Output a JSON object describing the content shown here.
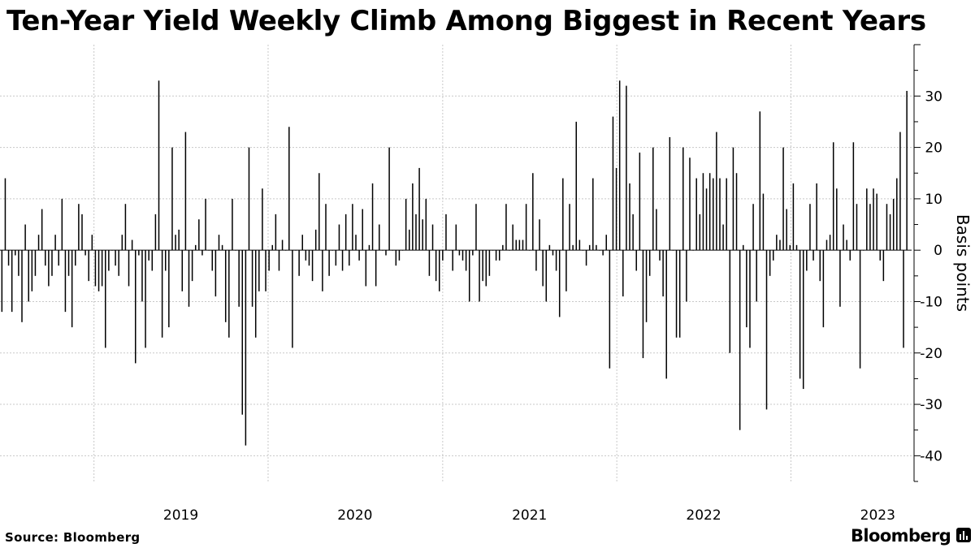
{
  "title": "Ten-Year Yield Weekly Climb Among Biggest in Recent Years",
  "source": "Source: Bloomberg",
  "brand": "Bloomberg",
  "colors": {
    "bar": "#000000",
    "grid": "#c8c8c8",
    "zero_line": "#000000",
    "background": "#ffffff"
  },
  "icons": {
    "brand": "bar-chart-icon"
  },
  "chart_data": {
    "type": "bar",
    "ylabel": "Basis points",
    "ylim": [
      -45,
      40
    ],
    "yticks": [
      30,
      20,
      10,
      0,
      -10,
      -20,
      -30,
      -40
    ],
    "ytick_labels": [
      "30",
      "20",
      "10",
      "0",
      "-10",
      "-20",
      "-30",
      "-40"
    ],
    "x_start": "2018-06-22",
    "x_range": [
      "2018-06-18",
      "2023-09-11"
    ],
    "x_unit": "week",
    "year_labels": [
      "2019",
      "2020",
      "2021",
      "2022",
      "2023"
    ],
    "year_label_dates": [
      "2019-07-02",
      "2020-07-01",
      "2021-07-02",
      "2022-07-02",
      "2023-07-02"
    ],
    "year_dividers": [
      "2019-01-01",
      "2020-01-01",
      "2021-01-01",
      "2022-01-01",
      "2023-01-01"
    ],
    "grid": true,
    "values": [
      -12,
      14,
      -3,
      -12,
      -1,
      -5,
      -14,
      5,
      -10,
      -8,
      -5,
      3,
      8,
      -3,
      -7,
      -5,
      3,
      -3,
      10,
      -12,
      -5,
      -15,
      -3,
      9,
      7,
      -1,
      -6,
      3,
      -7,
      -8,
      -7,
      -19,
      -4,
      0,
      -3,
      -5,
      3,
      9,
      -7,
      2,
      -22,
      -1,
      -10,
      -19,
      -2,
      -4,
      7,
      33,
      -17,
      -4,
      -15,
      20,
      3,
      4,
      -8,
      23,
      -11,
      -6,
      1,
      6,
      -1,
      10,
      0,
      -4,
      -9,
      3,
      1,
      -14,
      -17,
      10,
      0,
      -11,
      -32,
      -38,
      20,
      -11,
      -17,
      -8,
      12,
      -8,
      -4,
      1,
      7,
      -4,
      2,
      0,
      24,
      -19,
      0,
      -5,
      3,
      -2,
      -3,
      -6,
      4,
      15,
      -8,
      9,
      -5,
      0,
      -3,
      5,
      -4,
      7,
      -3,
      9,
      3,
      -2,
      8,
      -7,
      1,
      13,
      -7,
      5,
      0,
      -1,
      20,
      0,
      -3,
      -2,
      0,
      10,
      4,
      13,
      7,
      16,
      6,
      10,
      -5,
      5,
      -6,
      -8,
      -2,
      7,
      0,
      -4,
      5,
      -1,
      -2,
      -4,
      -10,
      -1,
      9,
      -10,
      -6,
      -7,
      -5,
      0,
      -2,
      -2,
      1,
      9,
      0,
      5,
      2,
      2,
      2,
      9,
      0,
      15,
      -4,
      6,
      -7,
      -10,
      1,
      -1,
      -4,
      -13,
      14,
      -8,
      9,
      1,
      25,
      2,
      0,
      -3,
      1,
      14,
      1,
      0,
      -1,
      3,
      -23,
      26,
      16,
      33,
      -9,
      32,
      13,
      7,
      -4,
      19,
      -21,
      -14,
      -5,
      20,
      8,
      -2,
      -9,
      -25,
      22,
      0,
      -17,
      -17,
      20,
      -10,
      18,
      0,
      14,
      7,
      15,
      12,
      15,
      14,
      23,
      14,
      5,
      14,
      -20,
      20,
      15,
      -35,
      1,
      -15,
      -19,
      9,
      -10,
      27,
      11,
      -31,
      -5,
      -2,
      3,
      2,
      20,
      8,
      1,
      13,
      1,
      -25,
      -27,
      -4,
      9,
      -2,
      13,
      -6,
      -15,
      2,
      3,
      21,
      12,
      -11,
      5,
      2,
      -2,
      21,
      9,
      -23,
      0,
      12,
      9,
      12,
      11,
      -2,
      -6,
      9,
      7,
      10,
      14,
      23,
      -19,
      31
    ]
  }
}
